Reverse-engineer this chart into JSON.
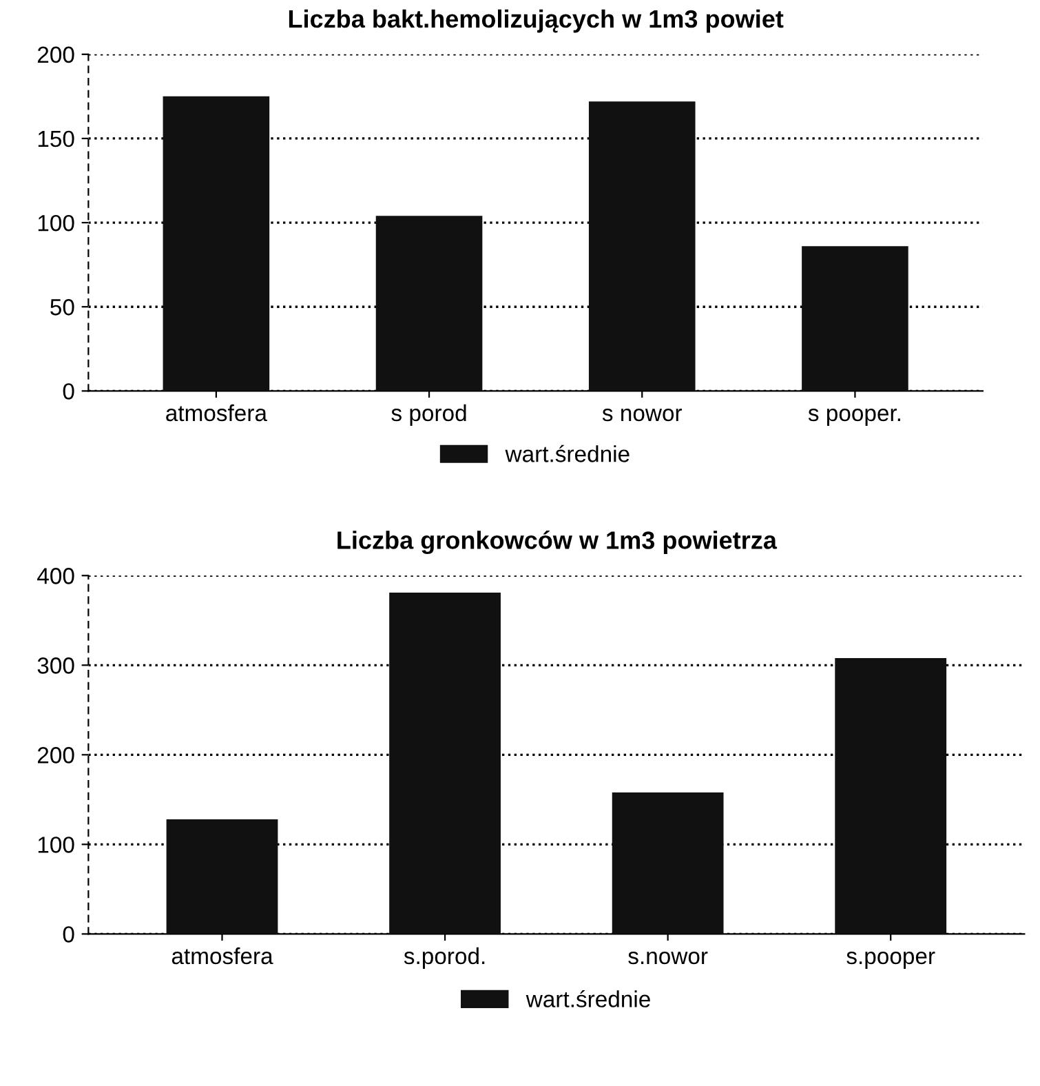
{
  "chart_data": [
    {
      "type": "bar",
      "title": "Liczba bakt.hemolizujących w 1m3 powiet",
      "categories": [
        "atmosfera",
        "s porod",
        "s nowor",
        "s pooper."
      ],
      "series": [
        {
          "name": "wart.średnie",
          "color": "#111111",
          "values": [
            175,
            104,
            172,
            86
          ]
        }
      ],
      "ylim": [
        0,
        200
      ],
      "yticks": [
        0,
        50,
        100,
        150,
        200
      ],
      "grid": "y",
      "legend": "bottom"
    },
    {
      "type": "bar",
      "title": "Liczba gronkowców w 1m3 powietrza",
      "categories": [
        "atmosfera",
        "s.porod.",
        "s.nowor",
        "s.pooper"
      ],
      "series": [
        {
          "name": "wart.średnie",
          "color": "#111111",
          "values": [
            128,
            381,
            158,
            308
          ]
        }
      ],
      "ylim": [
        0,
        400
      ],
      "yticks": [
        0,
        100,
        200,
        300,
        400
      ],
      "grid": "y",
      "legend": "bottom"
    }
  ]
}
